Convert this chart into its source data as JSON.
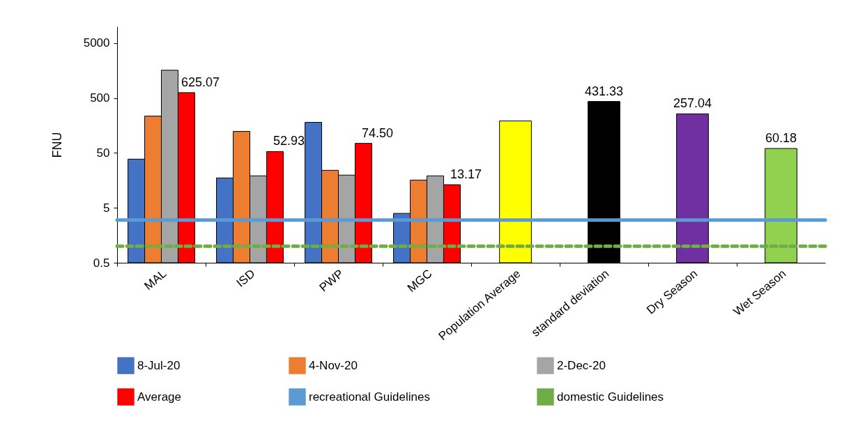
{
  "chart_data": {
    "type": "bar",
    "ylabel": "FNU",
    "categories": [
      "MAL",
      "ISD",
      "PWP",
      "MGC",
      "Population Average",
      "standard deviation",
      "Dry Season",
      "Wet Season"
    ],
    "series": [
      {
        "name": "8-Jul-20",
        "color": "#4472c4",
        "values": [
          38.5,
          17.5,
          180,
          3.96,
          null,
          null,
          null,
          null
        ]
      },
      {
        "name": "4-Nov-20",
        "color": "#ed7d31",
        "values": [
          234,
          123,
          24.1,
          16,
          null,
          null,
          null,
          null
        ]
      },
      {
        "name": "2-Dec-20",
        "color": "#a5a5a5",
        "values": [
          1600,
          19.1,
          19.7,
          19.1,
          null,
          null,
          null,
          null
        ]
      },
      {
        "name": "Average",
        "color": "#ff0000",
        "values": [
          625.07,
          52.93,
          74.5,
          13.17,
          null,
          null,
          null,
          null
        ],
        "value_labels": [
          "625.07",
          "52.93",
          "74.50",
          "13.17",
          null,
          null,
          null,
          null
        ]
      },
      {
        "colors": [
          null,
          null,
          null,
          null,
          "#ffff00",
          "#000000",
          "#7030a0",
          "#92d050"
        ],
        "values": [
          null,
          null,
          null,
          null,
          191,
          431.33,
          257.04,
          60.18
        ],
        "value_labels": [
          null,
          null,
          null,
          null,
          null,
          "431.33",
          "257.04",
          "60.18"
        ]
      }
    ],
    "log": true,
    "ylim": [
      0.5,
      10000
    ],
    "yticks": [
      0.5,
      5,
      50,
      500,
      5000
    ],
    "ref_lines": [
      {
        "axis": "y",
        "value": 3,
        "label": "recreational Guidelines",
        "color": "#5b9bd5"
      },
      {
        "axis": "y",
        "value": 1,
        "label": "domestic Guidelines",
        "color": "#70ad47",
        "line_style": "dashed"
      }
    ],
    "legend": "bottom",
    "grid": false
  }
}
